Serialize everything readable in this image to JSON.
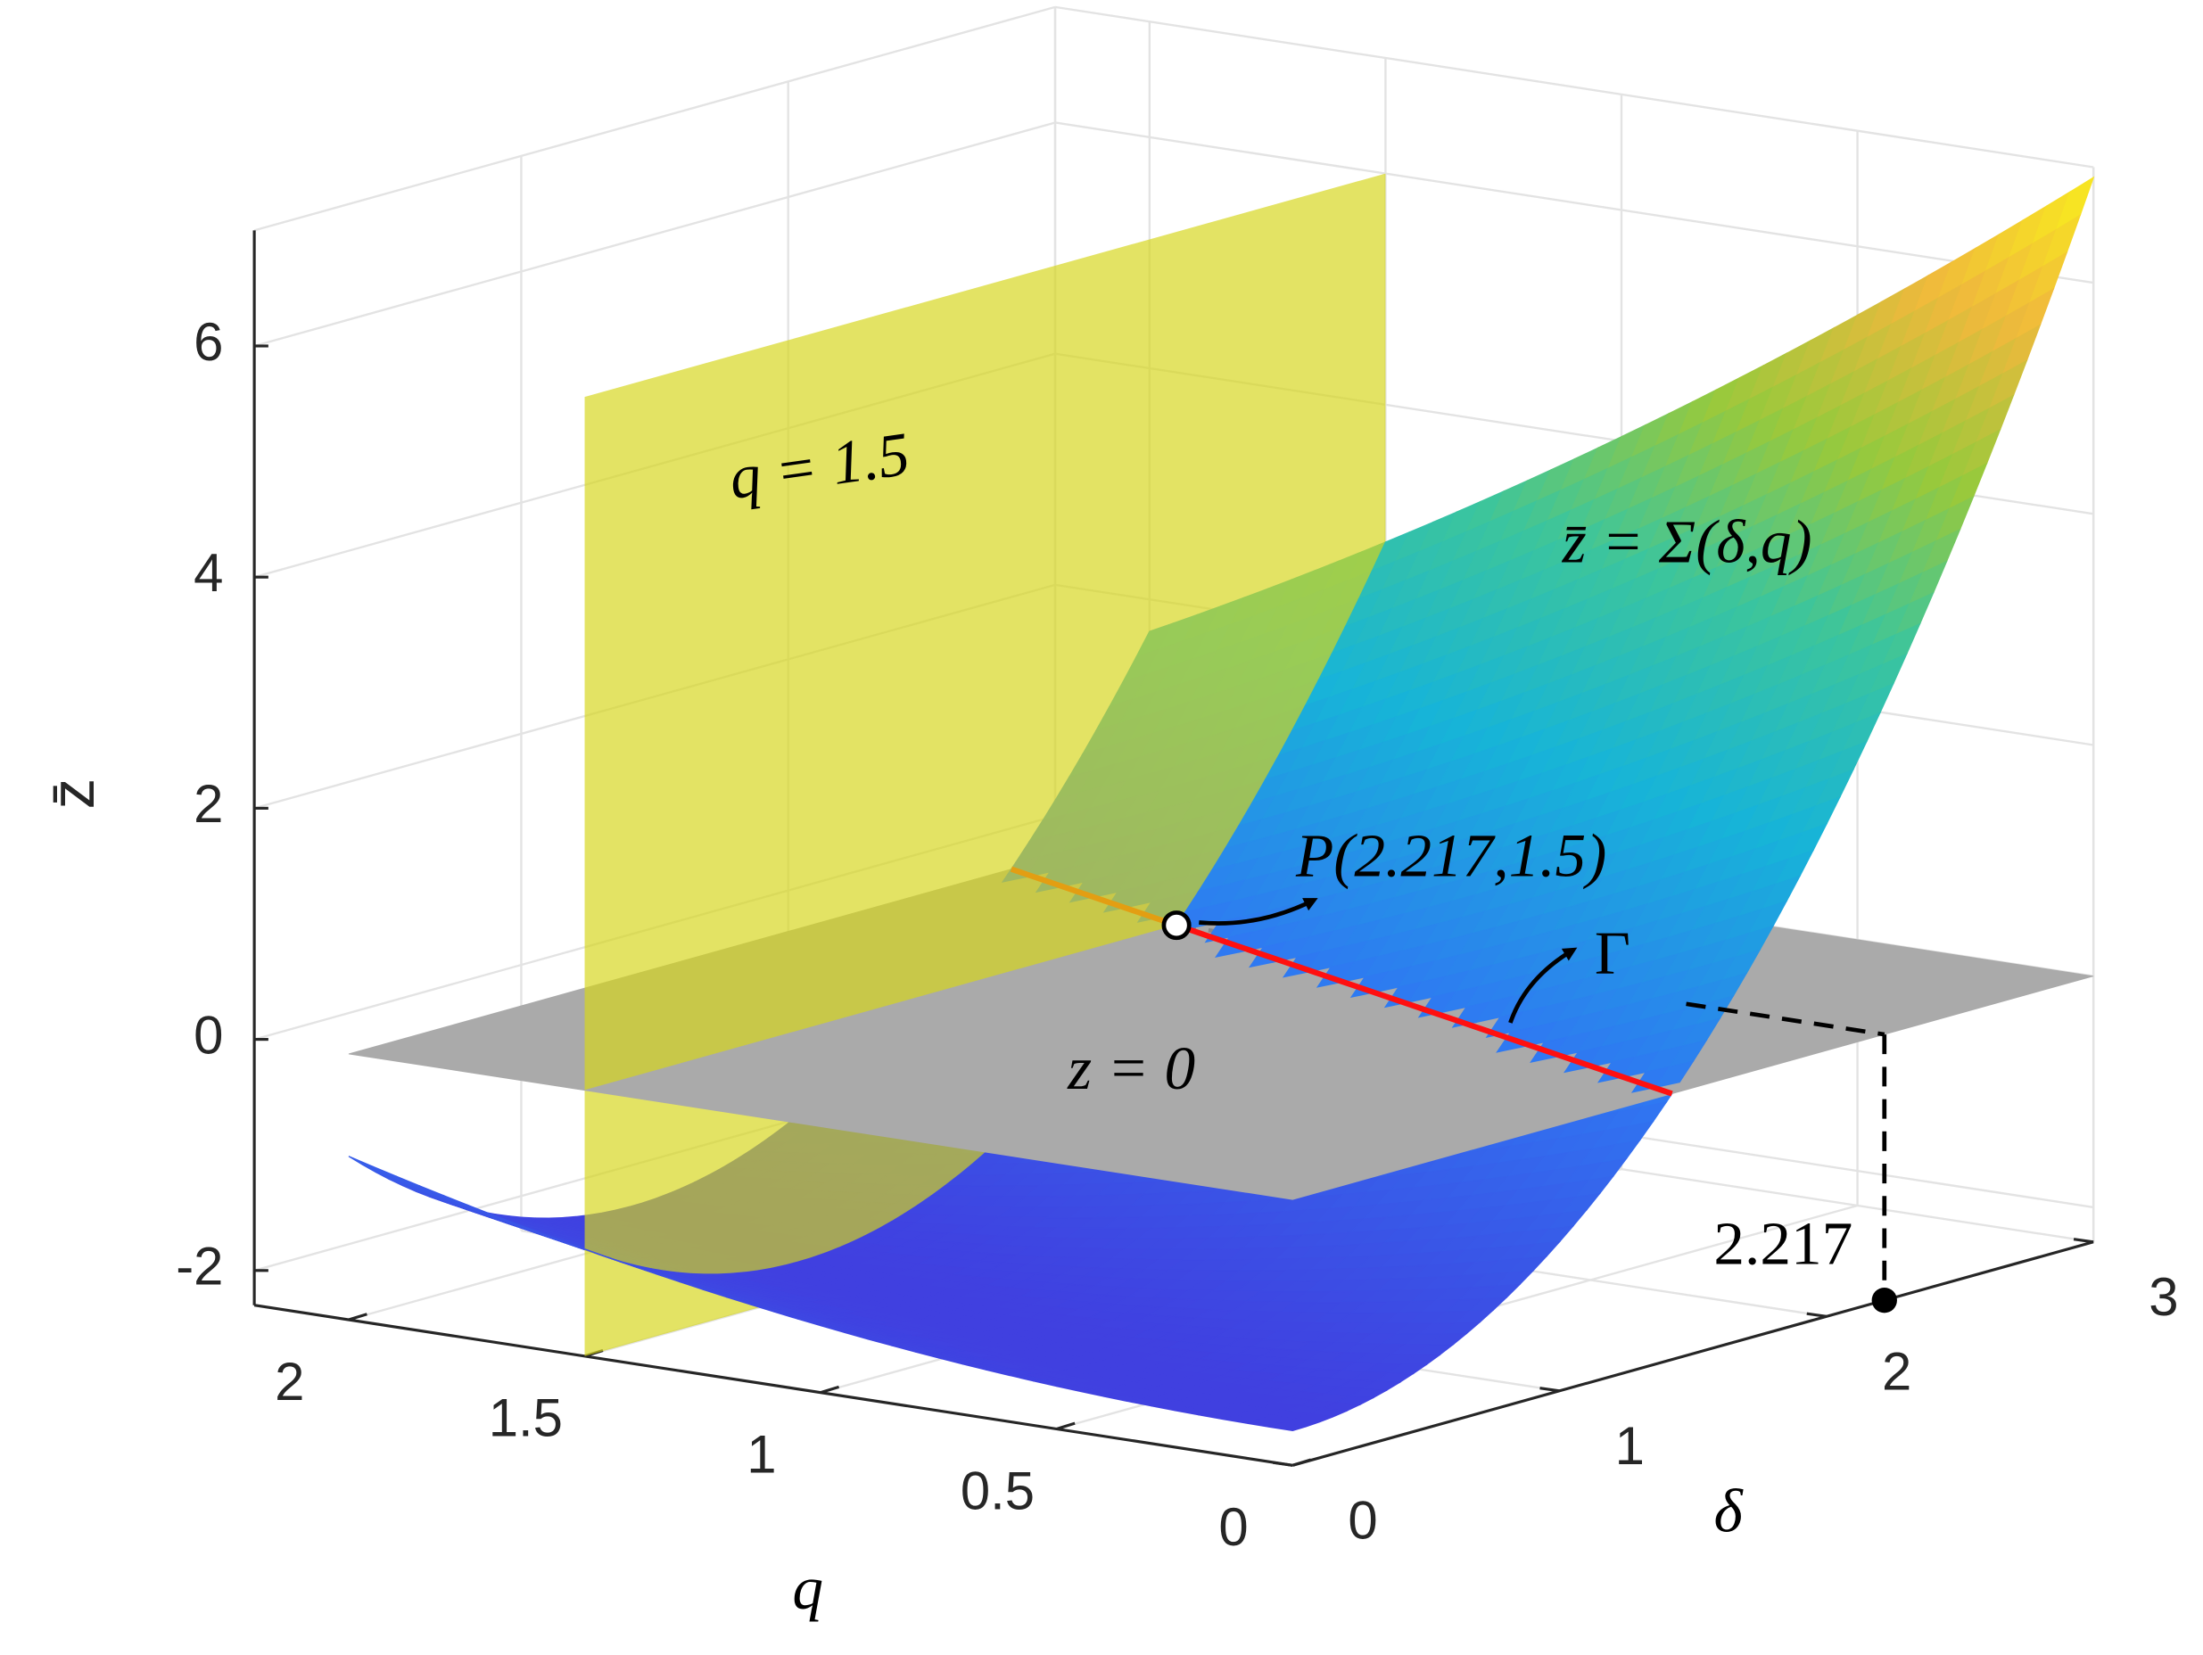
{
  "chart_data": {
    "type": "surface3d",
    "xlabel": "δ",
    "ylabel": "q",
    "zlabel": "z̄",
    "xlim": [
      0,
      3
    ],
    "xticks": [
      0,
      1,
      2,
      3
    ],
    "ylim": [
      0,
      2.2
    ],
    "yticks": [
      0,
      0.5,
      1,
      1.5,
      2
    ],
    "zlim": [
      -2.3,
      7
    ],
    "zticks": [
      -2,
      0,
      2,
      4,
      6
    ],
    "grid": true,
    "plane_label": "q = 1.5",
    "surface_label": "z̄ = Σ(δ,q)",
    "floor_label": "z = 0",
    "curve_label": "Γ",
    "point": {
      "x": 2.217,
      "y": 1.5,
      "label": "P(2.217,1.5)"
    }
  }
}
